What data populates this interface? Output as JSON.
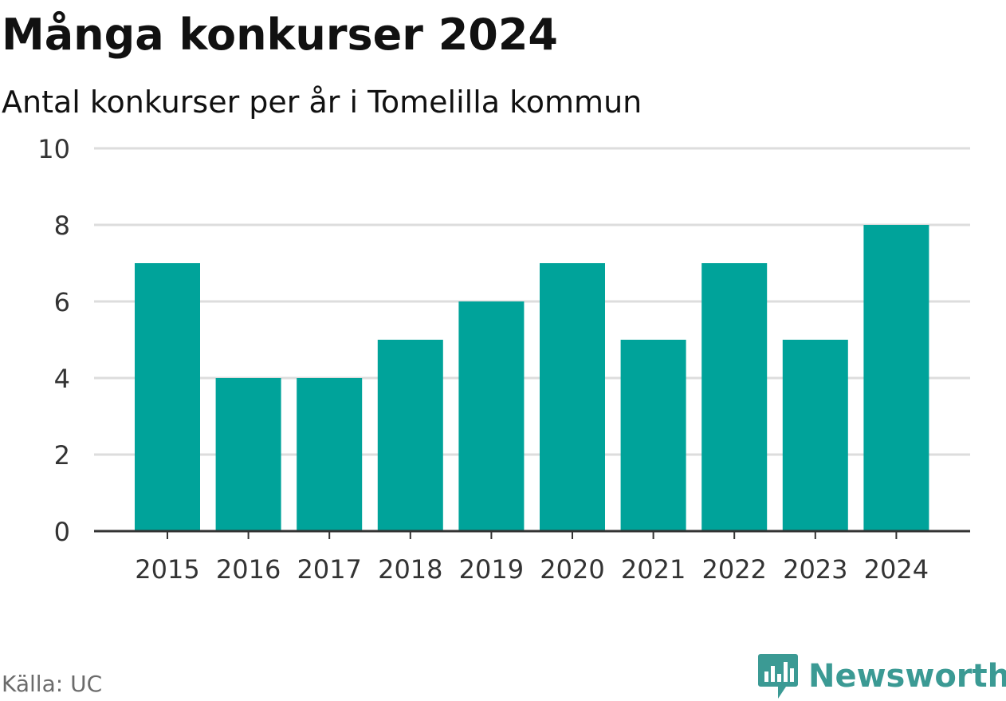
{
  "header": {
    "title": "Många konkurser 2024",
    "subtitle": "Antal konkurser per år i Tomelilla kommun"
  },
  "footer": {
    "source": "Källa: UC",
    "brand": "Newsworthy",
    "brand_icon": "bar-chart-speech-bubble-icon"
  },
  "colors": {
    "bar": "#00a39a",
    "grid": "#dddddd",
    "axis": "#333333",
    "brand": "#3b9a94"
  },
  "chart_data": {
    "type": "bar",
    "title": "Många konkurser 2024",
    "subtitle": "Antal konkurser per år i Tomelilla kommun",
    "xlabel": "",
    "ylabel": "",
    "categories": [
      "2015",
      "2016",
      "2017",
      "2018",
      "2019",
      "2020",
      "2021",
      "2022",
      "2023",
      "2024"
    ],
    "values": [
      7,
      4,
      4,
      5,
      6,
      7,
      5,
      7,
      5,
      8
    ],
    "ylim": [
      0,
      10
    ],
    "yticks": [
      0,
      2,
      4,
      6,
      8,
      10
    ],
    "grid": true,
    "legend": "none"
  }
}
